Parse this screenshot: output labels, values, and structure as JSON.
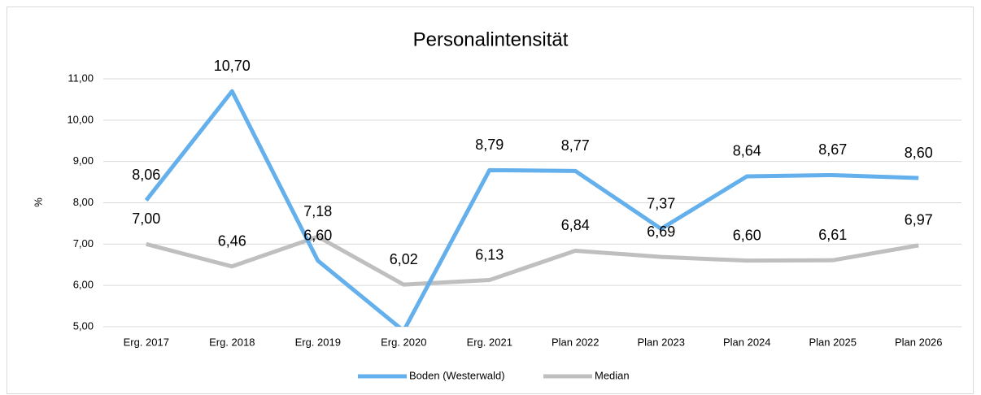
{
  "chart_data": {
    "type": "line",
    "title": "Personalintensität",
    "y_label": "%",
    "categories": [
      "Erg. 2017",
      "Erg. 2018",
      "Erg. 2019",
      "Erg. 2020",
      "Erg. 2021",
      "Plan 2022",
      "Plan 2023",
      "Plan 2024",
      "Plan 2025",
      "Plan 2026"
    ],
    "series": [
      {
        "name": "Boden (Westerwald)",
        "color": "#64b0ec",
        "values": [
          8.06,
          10.7,
          6.6,
          4.9,
          8.79,
          8.77,
          7.37,
          8.64,
          8.67,
          8.6
        ],
        "value_labels": [
          "8,06",
          "10,70",
          "6,60",
          null,
          "8,79",
          "8,77",
          "7,37",
          "8,64",
          "8,67",
          "8,60"
        ]
      },
      {
        "name": "Median",
        "color": "#bfbfbf",
        "values": [
          7.0,
          6.46,
          7.18,
          6.02,
          6.13,
          6.84,
          6.69,
          6.6,
          6.61,
          6.97
        ],
        "value_labels": [
          "7,00",
          "6,46",
          "7,18",
          "6,02",
          "6,13",
          "6,84",
          "6,69",
          "6,60",
          "6,61",
          "6,97"
        ]
      }
    ],
    "ylim": [
      5,
      11
    ],
    "yticks": [
      {
        "value": 5,
        "label": "5,00"
      },
      {
        "value": 6,
        "label": "6,00"
      },
      {
        "value": 7,
        "label": "7,00"
      },
      {
        "value": 8,
        "label": "8,00"
      },
      {
        "value": 9,
        "label": "9,00"
      },
      {
        "value": 10,
        "label": "10,00"
      },
      {
        "value": 11,
        "label": "11,00"
      }
    ],
    "grid": true,
    "legend": "bottom"
  }
}
